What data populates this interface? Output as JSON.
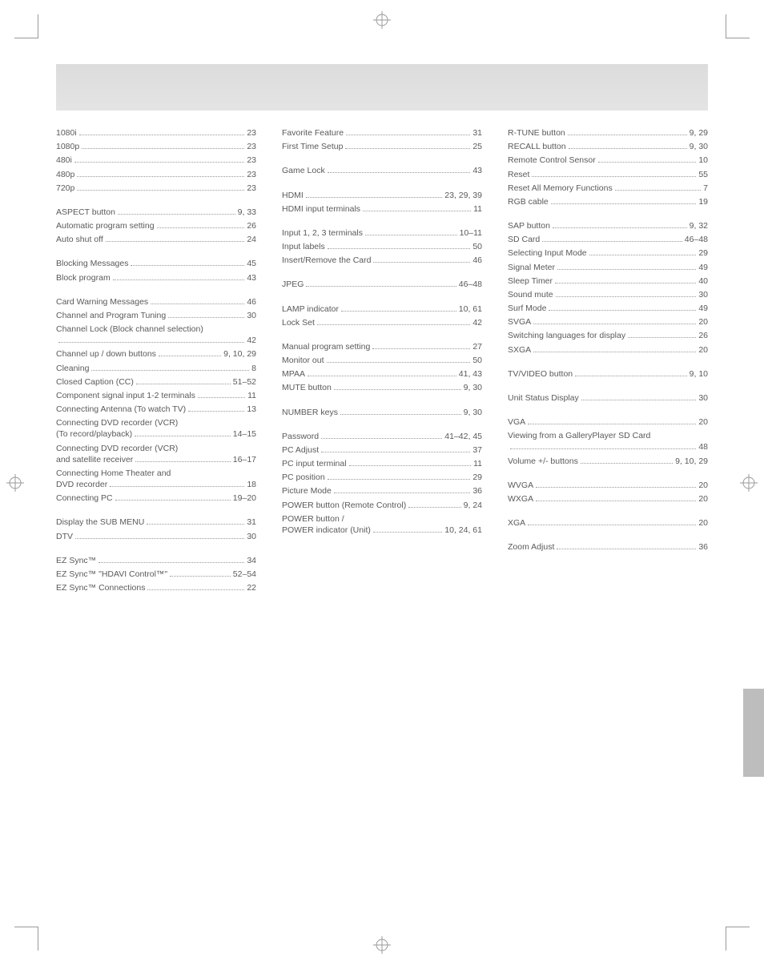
{
  "colors": {
    "text": "#5a5a5a",
    "dots": "#999999",
    "headerBand": "#e0e0e0",
    "sidebar": "#bdbdbd",
    "background": "#ffffff"
  },
  "typography": {
    "fontSizePt": 8,
    "fontFamily": "Arial"
  },
  "layout": {
    "columns": 3,
    "gapPx": 32,
    "pageWidth": 954,
    "pageHeight": 1205
  },
  "col1": [
    {
      "type": "group",
      "items": [
        {
          "label": "1080i",
          "page": "23"
        },
        {
          "label": "1080p",
          "page": "23"
        },
        {
          "label": "480i",
          "page": "23"
        },
        {
          "label": "480p",
          "page": "23"
        },
        {
          "label": "720p",
          "page": "23"
        }
      ]
    },
    {
      "type": "group",
      "items": [
        {
          "label": "ASPECT button",
          "page": "9, 33"
        },
        {
          "label": "Automatic program setting",
          "page": "26"
        },
        {
          "label": "Auto shut off",
          "page": "24"
        }
      ]
    },
    {
      "type": "group",
      "items": [
        {
          "label": "Blocking Messages",
          "page": "45"
        },
        {
          "label": "Block program",
          "page": "43"
        }
      ]
    },
    {
      "type": "group",
      "items": [
        {
          "label": "Card Warning Messages",
          "page": "46"
        },
        {
          "label": "Channel and Program Tuning",
          "page": "30"
        },
        {
          "multi": true,
          "line1": "Channel Lock (Block channel selection)",
          "page": "42"
        },
        {
          "label": "Channel up / down buttons",
          "page": "9, 10, 29"
        },
        {
          "label": "Cleaning",
          "page": "8"
        },
        {
          "label": "Closed Caption (CC)",
          "page": "51–52"
        },
        {
          "label": "Component signal input 1-2 terminals",
          "page": "11"
        },
        {
          "label": "Connecting Antenna (To watch TV)",
          "page": "13"
        },
        {
          "multi": true,
          "line1": "Connecting DVD recorder (VCR)",
          "label": "(To record/playback)",
          "page": "14–15"
        },
        {
          "multi": true,
          "line1": "Connecting DVD recorder (VCR)",
          "label": "and satellite receiver",
          "page": "16–17"
        },
        {
          "multi": true,
          "line1": "Connecting Home Theater and",
          "label": "DVD recorder",
          "page": "18"
        },
        {
          "label": "Connecting PC",
          "page": "19–20"
        }
      ]
    },
    {
      "type": "group",
      "items": [
        {
          "label": "Display the SUB MENU",
          "page": "31"
        },
        {
          "label": "DTV",
          "page": "30"
        }
      ]
    },
    {
      "type": "group",
      "items": [
        {
          "label": "EZ Sync™",
          "page": "34"
        },
        {
          "label": "EZ Sync™ \"HDAVI Control™\"",
          "page": "52–54"
        },
        {
          "label": "EZ Sync™ Connections",
          "page": "22"
        }
      ]
    }
  ],
  "col2": [
    {
      "type": "group",
      "items": [
        {
          "label": "Favorite Feature",
          "page": "31"
        },
        {
          "label": "First Time Setup",
          "page": "25"
        }
      ]
    },
    {
      "type": "group",
      "items": [
        {
          "label": "Game Lock",
          "page": "43"
        }
      ]
    },
    {
      "type": "group",
      "items": [
        {
          "label": "HDMI",
          "page": "23, 29, 39"
        },
        {
          "label": "HDMI input terminals",
          "page": "11"
        }
      ]
    },
    {
      "type": "group",
      "items": [
        {
          "label": "Input 1, 2, 3 terminals",
          "page": "10–11"
        },
        {
          "label": "Input labels",
          "page": "50"
        },
        {
          "label": "Insert/Remove the Card",
          "page": "46"
        }
      ]
    },
    {
      "type": "group",
      "items": [
        {
          "label": "JPEG",
          "page": "46–48"
        }
      ]
    },
    {
      "type": "group",
      "items": [
        {
          "label": "LAMP indicator",
          "page": "10, 61"
        },
        {
          "label": "Lock Set",
          "page": "42"
        }
      ]
    },
    {
      "type": "group",
      "items": [
        {
          "label": "Manual program setting",
          "page": "27"
        },
        {
          "label": "Monitor out",
          "page": "50"
        },
        {
          "label": "MPAA",
          "page": "41, 43"
        },
        {
          "label": "MUTE button",
          "page": "9, 30"
        }
      ]
    },
    {
      "type": "group",
      "items": [
        {
          "label": "NUMBER keys",
          "page": "9, 30"
        }
      ]
    },
    {
      "type": "group",
      "items": [
        {
          "label": "Password",
          "page": "41–42, 45"
        },
        {
          "label": "PC Adjust",
          "page": "37"
        },
        {
          "label": "PC input terminal",
          "page": "11"
        },
        {
          "label": "PC position",
          "page": "29"
        },
        {
          "label": "Picture Mode",
          "page": "36"
        },
        {
          "label": "POWER button (Remote Control)",
          "page": "9, 24"
        },
        {
          "multi": true,
          "line1": "POWER button /",
          "label": "POWER indicator (Unit)",
          "page": "10, 24, 61"
        }
      ]
    }
  ],
  "col3": [
    {
      "type": "group",
      "items": [
        {
          "label": "R-TUNE button",
          "page": "9, 29"
        },
        {
          "label": "RECALL button",
          "page": "9, 30"
        },
        {
          "label": "Remote Control Sensor",
          "page": "10"
        },
        {
          "label": "Reset",
          "page": "55"
        },
        {
          "label": "Reset All Memory Functions",
          "page": "7"
        },
        {
          "label": "RGB cable",
          "page": "19"
        }
      ]
    },
    {
      "type": "group",
      "items": [
        {
          "label": "SAP button",
          "page": "9, 32"
        },
        {
          "label": "SD Card",
          "page": "46–48"
        },
        {
          "label": "Selecting Input Mode",
          "page": "29"
        },
        {
          "label": "Signal Meter",
          "page": "49"
        },
        {
          "label": "Sleep Timer",
          "page": "40"
        },
        {
          "label": "Sound mute",
          "page": "30"
        },
        {
          "label": "Surf Mode",
          "page": "49"
        },
        {
          "label": "SVGA",
          "page": "20"
        },
        {
          "label": "Switching languages for display",
          "page": "26"
        },
        {
          "label": "SXGA",
          "page": "20"
        }
      ]
    },
    {
      "type": "group",
      "items": [
        {
          "label": "TV/VIDEO button",
          "page": "9, 10"
        }
      ]
    },
    {
      "type": "group",
      "items": [
        {
          "label": "Unit Status Display",
          "page": "30"
        }
      ]
    },
    {
      "type": "group",
      "items": [
        {
          "label": "VGA",
          "page": "20"
        },
        {
          "multi": true,
          "line1": "Viewing from a GalleryPlayer SD Card",
          "page": "48"
        },
        {
          "label": "Volume +/- buttons",
          "page": "9, 10, 29"
        }
      ]
    },
    {
      "type": "group",
      "items": [
        {
          "label": "WVGA",
          "page": "20"
        },
        {
          "label": "WXGA",
          "page": "20"
        }
      ]
    },
    {
      "type": "group",
      "items": [
        {
          "label": "XGA",
          "page": "20"
        }
      ]
    },
    {
      "type": "group",
      "items": [
        {
          "label": "Zoom Adjust",
          "page": "36"
        }
      ]
    }
  ]
}
